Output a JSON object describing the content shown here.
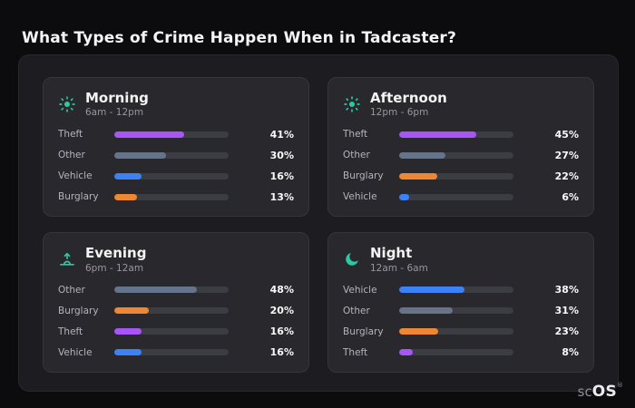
{
  "page_title": "What Types of Crime Happen When in Tadcaster?",
  "brand": {
    "prefix": "sc",
    "name": "OS",
    "registered": "®"
  },
  "colors": {
    "accent_icon": "#2fc8a5",
    "bar_track": "#3c3c43",
    "crime": {
      "Theft": "#a855f7",
      "Other": "#66748a",
      "Vehicle": "#3b82f6",
      "Burglary": "#ed8733"
    }
  },
  "chart_data": [
    {
      "type": "bar",
      "title": "Morning",
      "subtitle": "6am - 12pm",
      "icon": "sun-icon",
      "orientation": "horizontal",
      "value_format": "percent",
      "categories": [
        "Theft",
        "Other",
        "Vehicle",
        "Burglary"
      ],
      "values": [
        41,
        30,
        16,
        13
      ]
    },
    {
      "type": "bar",
      "title": "Afternoon",
      "subtitle": "12pm - 6pm",
      "icon": "sun-icon",
      "orientation": "horizontal",
      "value_format": "percent",
      "categories": [
        "Theft",
        "Other",
        "Burglary",
        "Vehicle"
      ],
      "values": [
        45,
        27,
        22,
        6
      ]
    },
    {
      "type": "bar",
      "title": "Evening",
      "subtitle": "6pm - 12am",
      "icon": "sunrise-icon",
      "orientation": "horizontal",
      "value_format": "percent",
      "categories": [
        "Other",
        "Burglary",
        "Theft",
        "Vehicle"
      ],
      "values": [
        48,
        20,
        16,
        16
      ]
    },
    {
      "type": "bar",
      "title": "Night",
      "subtitle": "12am - 6am",
      "icon": "moon-icon",
      "orientation": "horizontal",
      "value_format": "percent",
      "categories": [
        "Vehicle",
        "Other",
        "Burglary",
        "Theft"
      ],
      "values": [
        38,
        31,
        23,
        8
      ]
    }
  ]
}
